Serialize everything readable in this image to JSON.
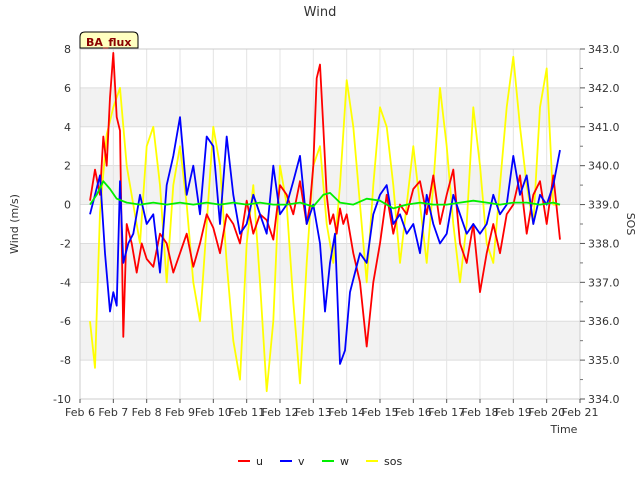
{
  "chart_data": {
    "type": "line",
    "title": "Wind",
    "badge": "BA_flux",
    "xlabel": "Time",
    "ylabel_left": "Wind (m/s)",
    "ylabel_right": "SOS",
    "xlim": [
      6,
      21
    ],
    "ylim_left": [
      -10,
      8
    ],
    "ylim_right": [
      334.0,
      343.0
    ],
    "x_ticks": [
      6,
      7,
      8,
      9,
      10,
      11,
      12,
      13,
      14,
      15,
      16,
      17,
      18,
      19,
      20,
      21
    ],
    "x_tick_labels": [
      "Feb 6",
      "Feb 7",
      "Feb 8",
      "Feb 9",
      "Feb 10",
      "Feb 11",
      "Feb 12",
      "Feb 13",
      "Feb 14",
      "Feb 15",
      "Feb 16",
      "Feb 17",
      "Feb 18",
      "Feb 19",
      "Feb 20",
      "Feb 21"
    ],
    "y_left_ticks": [
      -10,
      -8,
      -6,
      -4,
      -2,
      0,
      2,
      4,
      6,
      8
    ],
    "y_right_ticks": [
      "334.0",
      "335.0",
      "336.0",
      "337.0",
      "338.0",
      "339.0",
      "340.0",
      "341.0",
      "342.0",
      "343.0"
    ],
    "series": [
      {
        "name": "u",
        "axis": "left",
        "color": "#ff0000",
        "x": [
          6.3,
          6.45,
          6.6,
          6.7,
          6.8,
          6.9,
          7.0,
          7.1,
          7.2,
          7.3,
          7.4,
          7.55,
          7.7,
          7.85,
          8.0,
          8.2,
          8.4,
          8.6,
          8.8,
          9.0,
          9.2,
          9.4,
          9.6,
          9.8,
          10.0,
          10.2,
          10.4,
          10.6,
          10.8,
          11.0,
          11.2,
          11.4,
          11.6,
          11.8,
          12.0,
          12.2,
          12.4,
          12.6,
          12.8,
          12.9,
          13.0,
          13.1,
          13.2,
          13.3,
          13.4,
          13.5,
          13.6,
          13.7,
          13.8,
          13.9,
          14.0,
          14.2,
          14.4,
          14.6,
          14.8,
          15.0,
          15.2,
          15.4,
          15.6,
          15.8,
          16.0,
          16.2,
          16.4,
          16.6,
          16.8,
          17.0,
          17.2,
          17.4,
          17.6,
          17.8,
          18.0,
          18.2,
          18.4,
          18.6,
          18.8,
          19.0,
          19.2,
          19.4,
          19.6,
          19.8,
          20.0,
          20.2,
          20.4
        ],
        "values": [
          0.2,
          1.8,
          0.5,
          3.5,
          2.0,
          5.5,
          7.8,
          4.5,
          3.8,
          -6.8,
          -1.0,
          -2.0,
          -3.5,
          -2.0,
          -2.8,
          -3.2,
          -1.5,
          -2.0,
          -3.5,
          -2.5,
          -1.5,
          -3.2,
          -2.0,
          -0.5,
          -1.2,
          -2.5,
          -0.5,
          -1.0,
          -2.0,
          0.2,
          -1.5,
          -0.5,
          -0.8,
          -1.8,
          1.0,
          0.5,
          -0.5,
          1.2,
          -1.0,
          0.0,
          2.0,
          6.5,
          7.2,
          4.0,
          0.5,
          -1.0,
          -0.5,
          -1.5,
          -0.2,
          -1.0,
          -0.5,
          -2.5,
          -4.0,
          -7.3,
          -4.0,
          -2.0,
          0.5,
          -1.5,
          0.0,
          -0.5,
          0.8,
          1.2,
          -0.5,
          1.5,
          -1.0,
          0.5,
          1.8,
          -2.0,
          -3.0,
          -1.0,
          -4.5,
          -2.5,
          -1.0,
          -2.5,
          -0.5,
          0.0,
          1.5,
          -1.5,
          0.5,
          1.2,
          -1.0,
          1.5,
          -1.8
        ]
      },
      {
        "name": "v",
        "axis": "left",
        "color": "#0000ff",
        "x": [
          6.3,
          6.45,
          6.6,
          6.75,
          6.9,
          7.0,
          7.1,
          7.2,
          7.3,
          7.45,
          7.6,
          7.8,
          8.0,
          8.2,
          8.4,
          8.6,
          8.8,
          9.0,
          9.2,
          9.4,
          9.6,
          9.8,
          10.0,
          10.2,
          10.4,
          10.6,
          10.8,
          11.0,
          11.2,
          11.4,
          11.6,
          11.8,
          12.0,
          12.2,
          12.4,
          12.6,
          12.8,
          13.0,
          13.2,
          13.35,
          13.5,
          13.65,
          13.8,
          13.95,
          14.1,
          14.25,
          14.4,
          14.6,
          14.8,
          15.0,
          15.2,
          15.4,
          15.6,
          15.8,
          16.0,
          16.2,
          16.4,
          16.6,
          16.8,
          17.0,
          17.2,
          17.4,
          17.6,
          17.8,
          18.0,
          18.2,
          18.4,
          18.6,
          18.8,
          19.0,
          19.2,
          19.4,
          19.6,
          19.8,
          20.0,
          20.2,
          20.4
        ],
        "values": [
          -0.5,
          0.5,
          1.5,
          -2.5,
          -5.5,
          -4.5,
          -5.2,
          1.2,
          -3.0,
          -2.0,
          -1.5,
          0.5,
          -1.0,
          -0.5,
          -3.5,
          1.0,
          2.5,
          4.5,
          0.5,
          2.0,
          -0.5,
          3.5,
          3.0,
          -1.0,
          3.5,
          0.5,
          -1.5,
          -1.0,
          0.5,
          -0.5,
          -1.5,
          2.0,
          -0.5,
          0.0,
          1.2,
          2.5,
          -1.0,
          0.0,
          -2.0,
          -5.5,
          -3.0,
          -1.5,
          -8.2,
          -7.5,
          -4.5,
          -3.5,
          -2.5,
          -3.0,
          -0.5,
          0.5,
          1.0,
          -1.0,
          -0.5,
          -1.5,
          -1.0,
          -2.5,
          0.5,
          -1.0,
          -2.0,
          -1.5,
          0.5,
          -0.5,
          -1.5,
          -1.0,
          -1.5,
          -1.0,
          0.5,
          -0.5,
          0.0,
          2.5,
          0.5,
          1.5,
          -1.0,
          0.5,
          0.0,
          1.0,
          2.8
        ]
      },
      {
        "name": "w",
        "axis": "left",
        "color": "#00ee00",
        "x": [
          6.3,
          6.5,
          6.7,
          6.9,
          7.1,
          7.4,
          7.8,
          8.2,
          8.6,
          9.0,
          9.4,
          9.8,
          10.2,
          10.6,
          11.0,
          11.4,
          11.8,
          12.2,
          12.6,
          13.0,
          13.3,
          13.5,
          13.8,
          14.2,
          14.6,
          15.0,
          15.4,
          15.8,
          16.2,
          16.6,
          17.0,
          17.4,
          17.8,
          18.2,
          18.6,
          19.0,
          19.4,
          19.8,
          20.2,
          20.4
        ],
        "values": [
          0.0,
          0.5,
          1.2,
          0.8,
          0.3,
          0.1,
          0.0,
          0.1,
          0.0,
          0.1,
          0.0,
          0.1,
          0.0,
          0.1,
          0.0,
          0.1,
          0.0,
          0.0,
          0.1,
          -0.1,
          0.5,
          0.6,
          0.1,
          0.0,
          0.3,
          0.2,
          -0.2,
          0.0,
          0.1,
          0.0,
          0.0,
          0.1,
          0.2,
          0.1,
          0.0,
          0.1,
          0.1,
          0.0,
          0.1,
          0.0
        ]
      },
      {
        "name": "sos",
        "axis": "right",
        "color": "#ffff00",
        "x": [
          6.3,
          6.45,
          6.6,
          6.8,
          7.0,
          7.2,
          7.4,
          7.6,
          7.8,
          8.0,
          8.2,
          8.4,
          8.6,
          8.8,
          9.0,
          9.2,
          9.4,
          9.6,
          9.8,
          10.0,
          10.2,
          10.4,
          10.6,
          10.8,
          11.0,
          11.2,
          11.4,
          11.6,
          11.8,
          12.0,
          12.2,
          12.4,
          12.6,
          12.8,
          13.0,
          13.2,
          13.4,
          13.6,
          13.8,
          14.0,
          14.2,
          14.4,
          14.6,
          14.8,
          15.0,
          15.2,
          15.4,
          15.6,
          15.8,
          16.0,
          16.2,
          16.4,
          16.6,
          16.8,
          17.0,
          17.2,
          17.4,
          17.6,
          17.8,
          18.0,
          18.2,
          18.4,
          18.6,
          18.8,
          19.0,
          19.2,
          19.4,
          19.6,
          19.8,
          20.0,
          20.2,
          20.4
        ],
        "values": [
          336.0,
          334.8,
          338.8,
          340.8,
          341.5,
          342.0,
          340.0,
          339.0,
          338.0,
          340.5,
          341.0,
          339.5,
          337.0,
          339.5,
          340.5,
          339.0,
          337.0,
          336.0,
          338.5,
          341.0,
          340.0,
          337.5,
          335.5,
          334.5,
          338.0,
          339.5,
          337.0,
          334.2,
          336.0,
          340.0,
          339.0,
          336.5,
          334.4,
          337.5,
          340.0,
          340.5,
          338.5,
          337.5,
          339.5,
          342.2,
          341.0,
          339.0,
          337.0,
          339.5,
          341.5,
          341.0,
          339.5,
          337.5,
          339.0,
          340.5,
          339.0,
          337.5,
          339.5,
          342.0,
          340.5,
          338.5,
          337.0,
          338.5,
          341.5,
          340.0,
          338.0,
          337.5,
          339.5,
          341.5,
          342.8,
          341.0,
          339.5,
          338.5,
          341.5,
          342.5,
          339.0,
          339.0
        ]
      }
    ],
    "legend": [
      "u",
      "v",
      "w",
      "sos"
    ],
    "legend_position": "bottom",
    "grid": "alternating horizontal bands"
  }
}
